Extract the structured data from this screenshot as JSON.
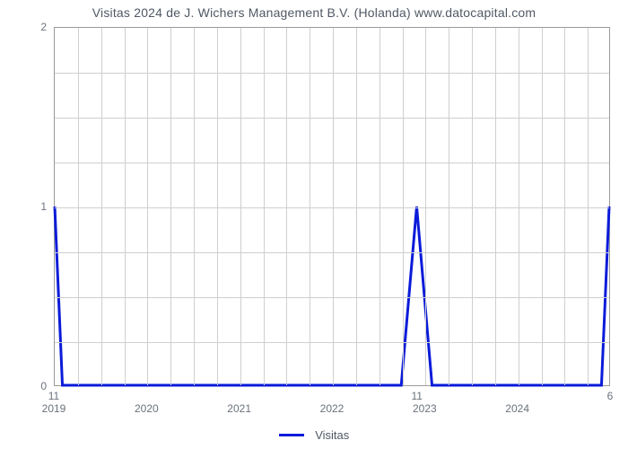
{
  "chart": {
    "type": "line",
    "title": "Visitas 2024 de J. Wichers Management B.V. (Holanda) www.datocapital.com",
    "title_fontsize": 14,
    "title_color": "#505864",
    "background_color": "#ffffff",
    "plot_border_color": "#9a9a9a",
    "grid_color": "#cfcfcf",
    "tick_color": "#6b727c",
    "tick_fontsize": 12,
    "point_label_fontsize": 12,
    "xlim": [
      2019,
      2025
    ],
    "ylim": [
      0,
      2
    ],
    "y_major_ticks": [
      0,
      1,
      2
    ],
    "y_minor_ticks": [
      0.25,
      0.5,
      0.75,
      1.25,
      1.5,
      1.75
    ],
    "x_axis_labels": [
      {
        "x": 2019,
        "label": "2019"
      },
      {
        "x": 2020,
        "label": "2020"
      },
      {
        "x": 2021,
        "label": "2021"
      },
      {
        "x": 2022,
        "label": "2022"
      },
      {
        "x": 2023,
        "label": "2023"
      },
      {
        "x": 2024,
        "label": "2024"
      }
    ],
    "x_minor_step": 0.25,
    "series": {
      "name": "Visitas",
      "color": "#0a1bd9",
      "line_width": 3,
      "points": [
        {
          "x": 2019.0,
          "y": 1
        },
        {
          "x": 2019.083,
          "y": 0
        },
        {
          "x": 2022.75,
          "y": 0
        },
        {
          "x": 2022.917,
          "y": 1
        },
        {
          "x": 2023.083,
          "y": 0
        },
        {
          "x": 2024.917,
          "y": 0
        },
        {
          "x": 2025.0,
          "y": 1
        }
      ],
      "point_labels": [
        {
          "x": 2019.0,
          "y": 0,
          "text": "11"
        },
        {
          "x": 2022.917,
          "y": 0,
          "text": "11"
        },
        {
          "x": 2025.0,
          "y": 0,
          "text": "6"
        }
      ]
    },
    "legend": {
      "swatch_width": 28,
      "label": "Visitas",
      "fontsize": 13
    }
  }
}
